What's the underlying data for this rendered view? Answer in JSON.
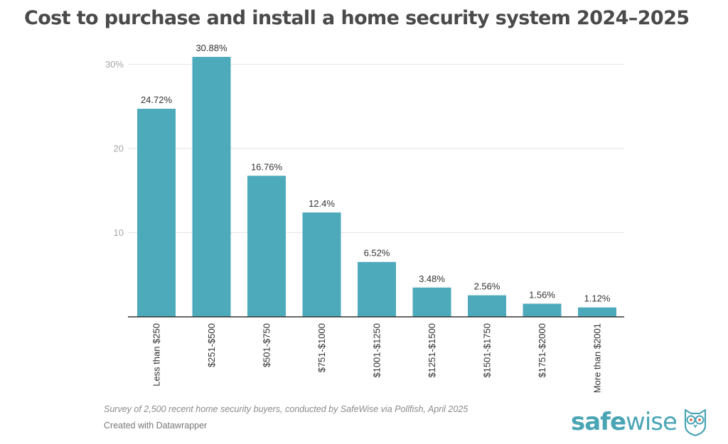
{
  "chart_data": {
    "type": "bar",
    "title": "Cost to purchase and install a home security system 2024–2025",
    "xlabel": "",
    "ylabel": "",
    "ylim": [
      0,
      30
    ],
    "grid": true,
    "yticks": [
      {
        "value": 10,
        "label": "10"
      },
      {
        "value": 20,
        "label": "20"
      },
      {
        "value": 30,
        "label": "30%"
      }
    ],
    "categories": [
      "Less than $250",
      "$251-$500",
      "$501-$750",
      "$751-$1000",
      "$1001-$1250",
      "$1251-$1500",
      "$1501-$1750",
      "$1751-$2000",
      "More than $2001"
    ],
    "values": [
      24.72,
      30.88,
      16.76,
      12.4,
      6.52,
      3.48,
      2.56,
      1.56,
      1.12
    ],
    "data_labels": [
      "24.72%",
      "30.88%",
      "16.76%",
      "12.4%",
      "6.52%",
      "3.48%",
      "2.56%",
      "1.56%",
      "1.12%"
    ],
    "bar_color": "#4daabb"
  },
  "footer": {
    "note": "Survey of 2,500 recent home security buyers, conducted by SafeWise via Pollfish, April 2025",
    "credit": "Created with Datawrapper"
  },
  "logo": {
    "bold_part": "safe",
    "light_part": "wise",
    "brand_color": "#4aa5b5",
    "accent_color": "#e07a5f",
    "icon": "owl-icon"
  }
}
